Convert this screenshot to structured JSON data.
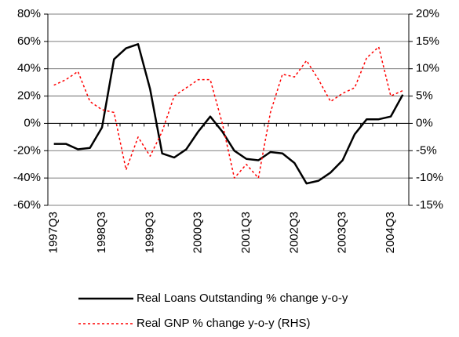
{
  "chart_data": {
    "type": "line",
    "categories": [
      "1997Q3",
      null,
      null,
      null,
      "1998Q3",
      null,
      null,
      null,
      "1999Q3",
      null,
      null,
      null,
      "2000Q3",
      null,
      null,
      null,
      "2001Q3",
      null,
      null,
      null,
      "2002Q3",
      null,
      null,
      null,
      "2003Q3",
      null,
      null,
      null,
      "2004Q3",
      null
    ],
    "series": [
      {
        "name": "Real Loans Outstanding % change y-o-y",
        "color": "#000000",
        "dash": "solid",
        "axis": "y",
        "values": [
          -15,
          -15,
          -19,
          -18,
          -3,
          47,
          55,
          58,
          25,
          -22,
          -25,
          -19,
          -6,
          5,
          -6,
          -20,
          -26,
          -27,
          -21,
          -22,
          -29,
          -44,
          -42,
          -36,
          -27,
          -8,
          3,
          3,
          5,
          21
        ]
      },
      {
        "name": "Real GNP % change y-o-y (RHS)",
        "color": "#ff0000",
        "dash": "dotted",
        "axis": "y2",
        "values": [
          7,
          8,
          9.5,
          4,
          2.5,
          2,
          -8.5,
          -2.5,
          -6,
          -1.5,
          5,
          6.5,
          8,
          8,
          0,
          -10,
          -7.5,
          -10,
          2,
          9,
          8.5,
          11.5,
          8,
          4,
          5.5,
          6.5,
          12,
          14,
          5,
          6
        ]
      }
    ],
    "ylim": [
      -60,
      80
    ],
    "yticks": [
      {
        "value": -60,
        "label": "-60%"
      },
      {
        "value": -40,
        "label": "-40%"
      },
      {
        "value": -20,
        "label": "-20%"
      },
      {
        "value": 0,
        "label": "0%"
      },
      {
        "value": 20,
        "label": "20%"
      },
      {
        "value": 40,
        "label": "40%"
      },
      {
        "value": 60,
        "label": "60%"
      },
      {
        "value": 80,
        "label": "80%"
      }
    ],
    "y2lim": [
      -15,
      20
    ],
    "y2ticks": [
      {
        "value": -15,
        "label": "-15%"
      },
      {
        "value": -10,
        "label": "-10%"
      },
      {
        "value": -5,
        "label": "-5%"
      },
      {
        "value": 0,
        "label": "0%"
      },
      {
        "value": 5,
        "label": "5%"
      },
      {
        "value": 10,
        "label": "10%"
      },
      {
        "value": 15,
        "label": "15%"
      },
      {
        "value": 20,
        "label": "20%"
      }
    ],
    "grid": true,
    "legend": "bottom"
  }
}
